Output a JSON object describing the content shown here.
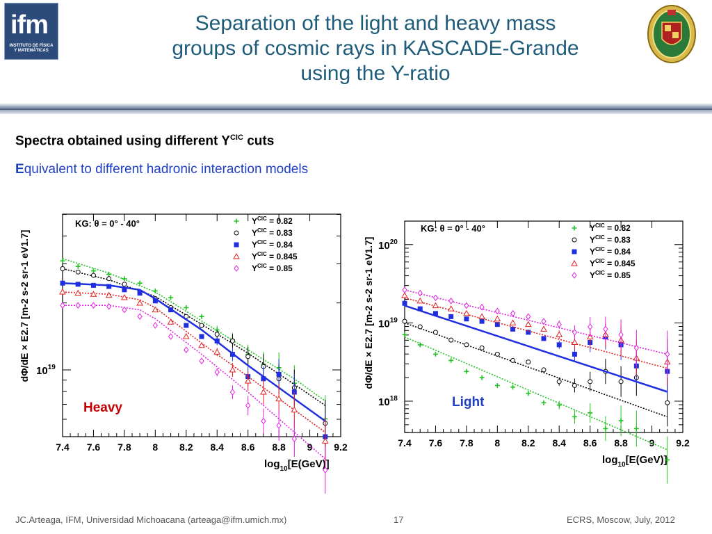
{
  "header": {
    "logo_left_big": "ifm",
    "logo_left_small": "INSTITUTO DE FÍSICA Y MATEMÁTICAS",
    "title_lines": [
      "Separation of the light and heavy mass",
      "groups of cosmic rays in KASCADE-Grande",
      "using the Y-ratio"
    ]
  },
  "body": {
    "heading_main": "Spectra obtained using different Y",
    "heading_sup": "CIC",
    "heading_end": " cuts",
    "sub_first": "E",
    "sub_rest": "quivalent to different hadronic interaction models"
  },
  "footer": {
    "left": "JC.Arteaga, IFM,  Universidad Michoacana  (arteaga@ifm.umich.mx)",
    "page": "17",
    "right": "ECRS, Moscow, July, 2012"
  },
  "colors": {
    "title": "#1f5c7a",
    "green": "#22c322",
    "black": "#000000",
    "blue": "#1f2fe0",
    "red": "#e02020",
    "magenta": "#e020e0",
    "heavy_label": "#c00000",
    "light_label": "#1f3fc2"
  },
  "chart_data": [
    {
      "type": "scatter",
      "label": "Heavy",
      "annotation": "KG: θ = 0° - 40°",
      "xlabel": "log10[E(GeV)]",
      "ylabel": "dΦ/dE × E2.7 [m-2 s-2 sr-1 eV1.7]",
      "xlim": [
        7.4,
        9.2
      ],
      "ylim_log10": [
        18.7,
        19.7
      ],
      "yticks": [
        {
          "label": "10",
          "sup": "19",
          "value": 19
        }
      ],
      "xticks": [
        "7.4",
        "7.6",
        "7.8",
        "8",
        "8.2",
        "8.4",
        "8.6",
        "8.8",
        "9",
        "9.2"
      ],
      "legend": [
        {
          "name": "Y",
          "sup": "CIC",
          "rest": " = 0.82",
          "color": "green",
          "marker": "cross"
        },
        {
          "name": "Y",
          "sup": "CIC",
          "rest": " = 0.83",
          "color": "black",
          "marker": "circle"
        },
        {
          "name": "Y",
          "sup": "CIC",
          "rest": " = 0.84",
          "color": "blue",
          "marker": "square"
        },
        {
          "name": "Y",
          "sup": "CIC",
          "rest": " = 0.845",
          "color": "red",
          "marker": "triangle"
        },
        {
          "name": "Y",
          "sup": "CIC",
          "rest": " = 0.85",
          "color": "magenta",
          "marker": "diamond"
        }
      ],
      "series": [
        {
          "name": "YCIC = 0.82",
          "color": "green",
          "marker": "cross",
          "x": [
            7.4,
            7.5,
            7.6,
            7.7,
            7.8,
            7.9,
            8.0,
            8.1,
            8.2,
            8.3,
            8.4,
            8.5,
            8.6,
            8.7,
            8.8,
            8.9,
            9.1
          ],
          "y": [
            19.49,
            19.465,
            19.445,
            19.43,
            19.41,
            19.39,
            19.355,
            19.325,
            19.28,
            19.24,
            19.18,
            19.135,
            19.07,
            19.025,
            19.01,
            18.94,
            18.78
          ],
          "fit_x": [
            7.4,
            7.7,
            8.0,
            8.3,
            8.6,
            8.9,
            9.1
          ],
          "fit_y": [
            19.5,
            19.435,
            19.35,
            19.22,
            19.09,
            18.96,
            18.86
          ]
        },
        {
          "name": "YCIC = 0.83",
          "color": "black",
          "marker": "circle",
          "x": [
            7.4,
            7.5,
            7.6,
            7.7,
            7.8,
            7.9,
            8.0,
            8.1,
            8.2,
            8.3,
            8.4,
            8.5,
            8.6,
            8.7,
            8.8,
            8.9,
            9.1
          ],
          "y": [
            19.455,
            19.44,
            19.425,
            19.41,
            19.385,
            19.35,
            19.32,
            19.28,
            19.24,
            19.2,
            19.16,
            19.13,
            19.06,
            19.015,
            18.96,
            18.92,
            18.76
          ],
          "fit_x": [
            7.4,
            7.7,
            8.0,
            8.3,
            8.6,
            8.9,
            9.1
          ],
          "fit_y": [
            19.455,
            19.405,
            19.33,
            19.205,
            19.075,
            18.935,
            18.84
          ]
        },
        {
          "name": "YCIC = 0.84",
          "color": "blue",
          "marker": "square",
          "x": [
            7.4,
            7.5,
            7.6,
            7.7,
            7.8,
            7.9,
            8.0,
            8.1,
            8.2,
            8.3,
            8.4,
            8.5,
            8.6,
            8.7,
            8.8,
            8.9,
            9.1
          ],
          "y": [
            19.39,
            19.385,
            19.38,
            19.375,
            19.36,
            19.345,
            19.31,
            19.27,
            19.2,
            19.15,
            19.13,
            19.07,
            18.97,
            18.96,
            18.98,
            18.9,
            18.7
          ],
          "fit_x": [
            7.4,
            7.7,
            7.9,
            8.0,
            8.3,
            8.6,
            8.9,
            9.1
          ],
          "fit_y": [
            19.39,
            19.38,
            19.36,
            19.32,
            19.18,
            19.02,
            18.87,
            18.77
          ]
        },
        {
          "name": "YCIC = 0.845",
          "color": "red",
          "marker": "triangle",
          "x": [
            7.4,
            7.5,
            7.6,
            7.7,
            7.8,
            7.9,
            8.0,
            8.1,
            8.2,
            8.3,
            8.4,
            8.5,
            8.6,
            8.7,
            8.8,
            8.9,
            9.1
          ],
          "y": [
            19.35,
            19.345,
            19.34,
            19.335,
            19.325,
            19.3,
            19.27,
            19.215,
            19.15,
            19.11,
            19.08,
            19.0,
            18.95,
            18.9,
            18.87,
            18.82,
            18.68
          ],
          "fit_x": [
            7.4,
            7.7,
            7.9,
            8.0,
            8.3,
            8.6,
            8.9,
            9.1
          ],
          "fit_y": [
            19.35,
            19.34,
            19.315,
            19.28,
            19.12,
            18.97,
            18.82,
            18.72
          ]
        },
        {
          "name": "YCIC = 0.85",
          "color": "magenta",
          "marker": "diamond",
          "x": [
            7.4,
            7.5,
            7.6,
            7.7,
            7.8,
            7.9,
            8.0,
            8.1,
            8.2,
            8.3,
            8.4,
            8.5,
            8.6,
            8.7,
            8.8,
            8.9,
            9.1
          ],
          "y": [
            19.29,
            19.29,
            19.29,
            19.285,
            19.27,
            19.24,
            19.2,
            19.15,
            19.09,
            19.04,
            18.99,
            18.9,
            18.84,
            18.77,
            18.75,
            18.69,
            18.55
          ],
          "fit_x": [
            7.4,
            7.7,
            7.9,
            8.0,
            8.3,
            8.6,
            8.9,
            9.1
          ],
          "fit_y": [
            19.29,
            19.29,
            19.27,
            19.23,
            19.07,
            18.9,
            18.72,
            18.6
          ]
        }
      ]
    },
    {
      "type": "scatter",
      "label": "Light",
      "annotation": "KG: θ = 0° - 40°",
      "xlabel": "log10[E(GeV)]",
      "ylabel": "dΦ/dE × E2.7 [m-2 s-2 sr-1 eV1.7]",
      "xlim": [
        7.4,
        9.2
      ],
      "ylim_log10": [
        17.6,
        20.3
      ],
      "yticks": [
        {
          "label": "10",
          "sup": "20",
          "value": 20
        },
        {
          "label": "10",
          "sup": "19",
          "value": 19
        },
        {
          "label": "10",
          "sup": "18",
          "value": 18
        }
      ],
      "xticks": [
        "7.4",
        "7.6",
        "7.8",
        "8",
        "8.2",
        "8.4",
        "8.6",
        "8.8",
        "9",
        "9.2"
      ],
      "legend": [
        {
          "name": "Y",
          "sup": "CIC",
          "rest": " = 0.82",
          "color": "green",
          "marker": "cross"
        },
        {
          "name": "Y",
          "sup": "CIC",
          "rest": " = 0.83",
          "color": "black",
          "marker": "circle"
        },
        {
          "name": "Y",
          "sup": "CIC",
          "rest": " = 0.84",
          "color": "blue",
          "marker": "square"
        },
        {
          "name": "Y",
          "sup": "CIC",
          "rest": " = 0.845",
          "color": "red",
          "marker": "triangle"
        },
        {
          "name": "Y",
          "sup": "CIC",
          "rest": " = 0.85",
          "color": "magenta",
          "marker": "diamond"
        }
      ],
      "series": [
        {
          "name": "YCIC = 0.82",
          "color": "green",
          "marker": "cross",
          "x": [
            7.4,
            7.5,
            7.6,
            7.7,
            7.8,
            7.9,
            8.0,
            8.1,
            8.2,
            8.3,
            8.4,
            8.5,
            8.6,
            8.7,
            8.8,
            8.9,
            9.1
          ],
          "y": [
            18.85,
            18.72,
            18.6,
            18.52,
            18.38,
            18.3,
            18.2,
            18.18,
            18.1,
            17.98,
            17.95,
            17.8,
            17.85,
            17.65,
            17.75,
            17.65,
            17.25
          ],
          "fit_x": [
            7.4,
            9.1
          ],
          "fit_y": [
            18.82,
            17.38
          ]
        },
        {
          "name": "YCIC = 0.83",
          "color": "black",
          "marker": "circle",
          "x": [
            7.4,
            7.5,
            7.6,
            7.7,
            7.8,
            7.9,
            8.0,
            8.1,
            8.2,
            8.3,
            8.4,
            8.5,
            8.6,
            8.7,
            8.8,
            8.9,
            9.1
          ],
          "y": [
            19.02,
            18.95,
            18.88,
            18.78,
            18.72,
            18.68,
            18.6,
            18.52,
            18.5,
            18.4,
            18.25,
            18.2,
            18.25,
            18.38,
            18.25,
            18.3,
            17.98
          ],
          "fit_x": [
            7.4,
            9.1
          ],
          "fit_y": [
            19.0,
            17.8
          ]
        },
        {
          "name": "YCIC = 0.84",
          "color": "blue",
          "marker": "square",
          "x": [
            7.4,
            7.5,
            7.6,
            7.7,
            7.8,
            7.9,
            8.0,
            8.1,
            8.2,
            8.3,
            8.4,
            8.5,
            8.6,
            8.7,
            8.8,
            8.9,
            9.1
          ],
          "y": [
            19.25,
            19.18,
            19.12,
            19.08,
            19.05,
            19.02,
            18.98,
            18.92,
            18.88,
            18.8,
            18.72,
            18.6,
            18.75,
            18.82,
            18.72,
            18.45,
            18.38
          ],
          "fit_x": [
            7.4,
            9.1
          ],
          "fit_y": [
            19.22,
            18.12
          ]
        },
        {
          "name": "YCIC = 0.845",
          "color": "red",
          "marker": "triangle",
          "x": [
            7.4,
            7.5,
            7.6,
            7.7,
            7.8,
            7.9,
            8.0,
            8.1,
            8.2,
            8.3,
            8.4,
            8.5,
            8.6,
            8.7,
            8.8,
            8.9,
            9.1
          ],
          "y": [
            19.35,
            19.28,
            19.22,
            19.18,
            19.12,
            19.08,
            19.05,
            19.0,
            18.98,
            18.92,
            18.85,
            18.75,
            18.82,
            18.85,
            18.78,
            18.55,
            18.5
          ],
          "fit_x": [
            7.4,
            9.1
          ],
          "fit_y": [
            19.32,
            18.42
          ]
        },
        {
          "name": "YCIC = 0.85",
          "color": "magenta",
          "marker": "diamond",
          "x": [
            7.4,
            7.5,
            7.6,
            7.7,
            7.8,
            7.9,
            8.0,
            8.1,
            8.2,
            8.3,
            8.4,
            8.5,
            8.6,
            8.7,
            8.8,
            8.9,
            9.1
          ],
          "y": [
            19.42,
            19.38,
            19.32,
            19.28,
            19.22,
            19.2,
            19.15,
            19.12,
            19.08,
            19.02,
            18.98,
            18.88,
            18.95,
            18.92,
            18.85,
            18.68,
            18.6
          ],
          "fit_x": [
            7.4,
            9.1
          ],
          "fit_y": [
            19.42,
            18.6
          ]
        }
      ]
    }
  ]
}
